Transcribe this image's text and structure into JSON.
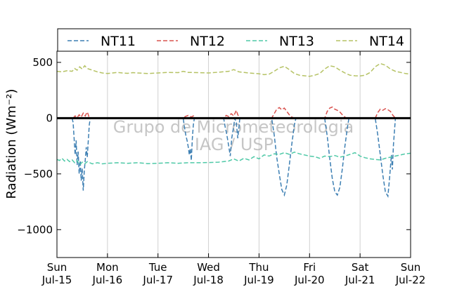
{
  "chart_data": {
    "type": "line",
    "ylabel": "Radiation (Wm⁻²)",
    "ylim": [
      -1250,
      600
    ],
    "yticks": [
      500,
      0,
      -500,
      -1000
    ],
    "ytick_labels": [
      "500",
      "0",
      "−500",
      "−1000"
    ],
    "xlim": [
      0,
      7
    ],
    "xticks": [
      {
        "x": 0,
        "day": "Sun",
        "date": "Jul-15"
      },
      {
        "x": 1,
        "day": "Mon",
        "date": "Jul-16"
      },
      {
        "x": 2,
        "day": "Tue",
        "date": "Jul-17"
      },
      {
        "x": 3,
        "day": "Wed",
        "date": "Jul-18"
      },
      {
        "x": 4,
        "day": "Thu",
        "date": "Jul-19"
      },
      {
        "x": 5,
        "day": "Fri",
        "date": "Jul-20"
      },
      {
        "x": 6,
        "day": "Sat",
        "date": "Jul-21"
      },
      {
        "x": 7,
        "day": "Sun",
        "date": "Jul-22"
      }
    ],
    "grid": "vertical",
    "legend_position": "top",
    "zero_line": true,
    "watermark": [
      "Grupo de Micrometeorologia",
      "IAG / USP"
    ],
    "series": [
      {
        "name": "NT11",
        "color": "#3d7fb3",
        "points": [
          [
            0.3,
            0
          ],
          [
            0.32,
            -40
          ],
          [
            0.34,
            -180
          ],
          [
            0.36,
            -330
          ],
          [
            0.38,
            -200
          ],
          [
            0.4,
            -420
          ],
          [
            0.42,
            -300
          ],
          [
            0.44,
            -500
          ],
          [
            0.46,
            -380
          ],
          [
            0.48,
            -560
          ],
          [
            0.5,
            -450
          ],
          [
            0.52,
            -650
          ],
          [
            0.54,
            -480
          ],
          [
            0.56,
            -380
          ],
          [
            0.58,
            -260
          ],
          [
            0.6,
            -350
          ],
          [
            0.62,
            -200
          ],
          [
            0.64,
            -60
          ],
          [
            0.66,
            0
          ],
          [
            2.5,
            0
          ],
          [
            2.52,
            -70
          ],
          [
            2.55,
            -150
          ],
          [
            2.58,
            -210
          ],
          [
            2.6,
            -260
          ],
          [
            2.62,
            -330
          ],
          [
            2.64,
            -270
          ],
          [
            2.66,
            -380
          ],
          [
            2.68,
            -180
          ],
          [
            2.7,
            -60
          ],
          [
            2.72,
            0
          ],
          [
            3.3,
            0
          ],
          [
            3.33,
            -80
          ],
          [
            3.36,
            -140
          ],
          [
            3.4,
            -250
          ],
          [
            3.43,
            -340
          ],
          [
            3.46,
            -180
          ],
          [
            3.5,
            -70
          ],
          [
            3.52,
            0
          ],
          [
            3.55,
            -40
          ],
          [
            3.58,
            -180
          ],
          [
            3.6,
            -90
          ],
          [
            3.62,
            0
          ],
          [
            4.25,
            0
          ],
          [
            4.3,
            -150
          ],
          [
            4.35,
            -350
          ],
          [
            4.4,
            -500
          ],
          [
            4.45,
            -640
          ],
          [
            4.5,
            -690
          ],
          [
            4.55,
            -600
          ],
          [
            4.6,
            -420
          ],
          [
            4.65,
            -230
          ],
          [
            4.7,
            -60
          ],
          [
            4.73,
            0
          ],
          [
            5.3,
            0
          ],
          [
            5.35,
            -160
          ],
          [
            5.4,
            -360
          ],
          [
            5.45,
            -540
          ],
          [
            5.5,
            -660
          ],
          [
            5.55,
            -690
          ],
          [
            5.6,
            -620
          ],
          [
            5.65,
            -450
          ],
          [
            5.7,
            -250
          ],
          [
            5.75,
            -80
          ],
          [
            5.78,
            0
          ],
          [
            6.3,
            0
          ],
          [
            6.35,
            -150
          ],
          [
            6.4,
            -330
          ],
          [
            6.45,
            -510
          ],
          [
            6.5,
            -660
          ],
          [
            6.55,
            -700
          ],
          [
            6.58,
            -560
          ],
          [
            6.6,
            -440
          ],
          [
            6.62,
            -330
          ],
          [
            6.64,
            -460
          ],
          [
            6.66,
            -240
          ],
          [
            6.68,
            -120
          ],
          [
            6.7,
            0
          ]
        ]
      },
      {
        "name": "NT12",
        "color": "#d9534f",
        "points": [
          [
            0.32,
            0
          ],
          [
            0.36,
            20
          ],
          [
            0.4,
            5
          ],
          [
            0.44,
            30
          ],
          [
            0.48,
            10
          ],
          [
            0.52,
            45
          ],
          [
            0.56,
            20
          ],
          [
            0.6,
            55
          ],
          [
            0.62,
            30
          ],
          [
            0.64,
            0
          ],
          [
            2.5,
            0
          ],
          [
            2.54,
            15
          ],
          [
            2.6,
            25
          ],
          [
            2.66,
            10
          ],
          [
            2.7,
            20
          ],
          [
            2.72,
            0
          ],
          [
            3.3,
            0
          ],
          [
            3.35,
            25
          ],
          [
            3.4,
            15
          ],
          [
            3.45,
            40
          ],
          [
            3.5,
            20
          ],
          [
            3.55,
            70
          ],
          [
            3.58,
            30
          ],
          [
            3.62,
            0
          ],
          [
            4.25,
            0
          ],
          [
            4.3,
            40
          ],
          [
            4.35,
            80
          ],
          [
            4.4,
            95
          ],
          [
            4.45,
            75
          ],
          [
            4.5,
            90
          ],
          [
            4.55,
            60
          ],
          [
            4.6,
            30
          ],
          [
            4.65,
            10
          ],
          [
            4.7,
            0
          ],
          [
            5.3,
            0
          ],
          [
            5.35,
            60
          ],
          [
            5.4,
            90
          ],
          [
            5.45,
            100
          ],
          [
            5.5,
            80
          ],
          [
            5.55,
            70
          ],
          [
            5.6,
            55
          ],
          [
            5.65,
            30
          ],
          [
            5.7,
            10
          ],
          [
            5.73,
            0
          ],
          [
            6.3,
            0
          ],
          [
            6.35,
            50
          ],
          [
            6.4,
            80
          ],
          [
            6.45,
            70
          ],
          [
            6.5,
            85
          ],
          [
            6.55,
            75
          ],
          [
            6.6,
            60
          ],
          [
            6.65,
            25
          ],
          [
            6.7,
            0
          ]
        ]
      },
      {
        "name": "NT13",
        "color": "#4fc9a7",
        "points": [
          [
            0.0,
            -370
          ],
          [
            0.05,
            -380
          ],
          [
            0.1,
            -360
          ],
          [
            0.15,
            -385
          ],
          [
            0.2,
            -370
          ],
          [
            0.25,
            -390
          ],
          [
            0.3,
            -375
          ],
          [
            0.35,
            -400
          ],
          [
            0.4,
            -380
          ],
          [
            0.45,
            -420
          ],
          [
            0.5,
            -395
          ],
          [
            0.55,
            -410
          ],
          [
            0.6,
            -390
          ],
          [
            0.7,
            -410
          ],
          [
            0.8,
            -400
          ],
          [
            0.9,
            -410
          ],
          [
            1.0,
            -405
          ],
          [
            1.2,
            -400
          ],
          [
            1.4,
            -405
          ],
          [
            1.6,
            -400
          ],
          [
            1.8,
            -408
          ],
          [
            2.0,
            -405
          ],
          [
            2.2,
            -400
          ],
          [
            2.4,
            -405
          ],
          [
            2.6,
            -400
          ],
          [
            2.8,
            -400
          ],
          [
            3.0,
            -398
          ],
          [
            3.2,
            -395
          ],
          [
            3.4,
            -385
          ],
          [
            3.5,
            -365
          ],
          [
            3.6,
            -385
          ],
          [
            3.7,
            -360
          ],
          [
            3.8,
            -375
          ],
          [
            3.9,
            -345
          ],
          [
            4.0,
            -365
          ],
          [
            4.1,
            -330
          ],
          [
            4.2,
            -340
          ],
          [
            4.3,
            -320
          ],
          [
            4.4,
            -325
          ],
          [
            4.5,
            -310
          ],
          [
            4.6,
            -325
          ],
          [
            4.7,
            -305
          ],
          [
            4.8,
            -320
          ],
          [
            4.9,
            -330
          ],
          [
            5.0,
            -340
          ],
          [
            5.1,
            -345
          ],
          [
            5.2,
            -360
          ],
          [
            5.3,
            -340
          ],
          [
            5.4,
            -345
          ],
          [
            5.5,
            -335
          ],
          [
            5.6,
            -350
          ],
          [
            5.7,
            -340
          ],
          [
            5.8,
            -325
          ],
          [
            5.9,
            -310
          ],
          [
            6.0,
            -340
          ],
          [
            6.1,
            -355
          ],
          [
            6.2,
            -365
          ],
          [
            6.3,
            -370
          ],
          [
            6.4,
            -375
          ],
          [
            6.5,
            -360
          ],
          [
            6.6,
            -350
          ],
          [
            6.7,
            -340
          ],
          [
            6.8,
            -330
          ],
          [
            6.9,
            -320
          ],
          [
            7.0,
            -315
          ]
        ]
      },
      {
        "name": "NT14",
        "color": "#b5c264",
        "points": [
          [
            0.0,
            420
          ],
          [
            0.1,
            415
          ],
          [
            0.2,
            425
          ],
          [
            0.3,
            420
          ],
          [
            0.35,
            445
          ],
          [
            0.4,
            430
          ],
          [
            0.45,
            460
          ],
          [
            0.5,
            440
          ],
          [
            0.55,
            470
          ],
          [
            0.6,
            445
          ],
          [
            0.7,
            430
          ],
          [
            0.8,
            415
          ],
          [
            0.9,
            405
          ],
          [
            1.0,
            400
          ],
          [
            1.1,
            405
          ],
          [
            1.2,
            410
          ],
          [
            1.3,
            405
          ],
          [
            1.4,
            402
          ],
          [
            1.5,
            408
          ],
          [
            1.6,
            405
          ],
          [
            1.8,
            400
          ],
          [
            2.0,
            405
          ],
          [
            2.2,
            410
          ],
          [
            2.4,
            408
          ],
          [
            2.5,
            420
          ],
          [
            2.6,
            410
          ],
          [
            2.8,
            408
          ],
          [
            3.0,
            405
          ],
          [
            3.2,
            412
          ],
          [
            3.4,
            420
          ],
          [
            3.5,
            435
          ],
          [
            3.6,
            415
          ],
          [
            3.8,
            405
          ],
          [
            4.0,
            398
          ],
          [
            4.1,
            390
          ],
          [
            4.2,
            395
          ],
          [
            4.3,
            420
          ],
          [
            4.4,
            450
          ],
          [
            4.5,
            465
          ],
          [
            4.6,
            435
          ],
          [
            4.7,
            400
          ],
          [
            4.8,
            385
          ],
          [
            4.9,
            380
          ],
          [
            5.0,
            375
          ],
          [
            5.1,
            385
          ],
          [
            5.2,
            400
          ],
          [
            5.3,
            440
          ],
          [
            5.4,
            470
          ],
          [
            5.5,
            460
          ],
          [
            5.6,
            430
          ],
          [
            5.7,
            405
          ],
          [
            5.8,
            385
          ],
          [
            5.9,
            380
          ],
          [
            6.0,
            378
          ],
          [
            6.1,
            385
          ],
          [
            6.2,
            410
          ],
          [
            6.3,
            460
          ],
          [
            6.4,
            490
          ],
          [
            6.5,
            475
          ],
          [
            6.6,
            440
          ],
          [
            6.7,
            420
          ],
          [
            6.8,
            410
          ],
          [
            6.9,
            400
          ],
          [
            7.0,
            395
          ]
        ]
      }
    ]
  }
}
